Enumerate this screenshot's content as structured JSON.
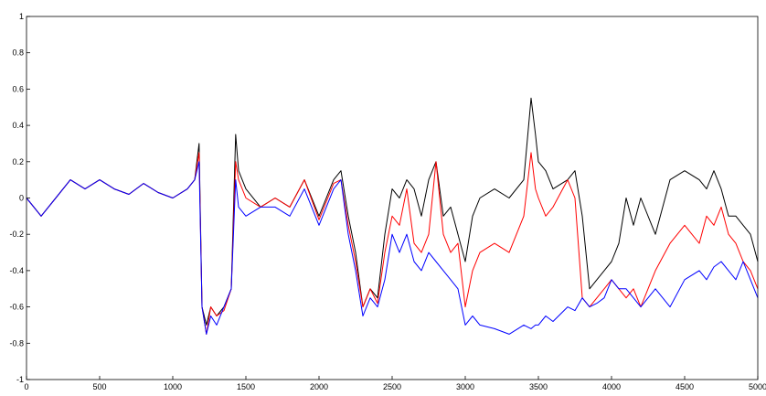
{
  "chart_data": {
    "type": "line",
    "title": "",
    "xlabel": "",
    "ylabel": "",
    "xlim": [
      0,
      5000
    ],
    "ylim": [
      -1,
      1
    ],
    "grid": false,
    "legend": "none",
    "x_ticks": [
      0,
      500,
      1000,
      1500,
      2000,
      2500,
      3000,
      3500,
      4000,
      4500,
      5000
    ],
    "x_tick_labels": [
      "0",
      "500",
      "1000",
      "1500",
      "2000",
      "2500",
      "3000",
      "3500",
      "4000",
      "4500",
      "5000"
    ],
    "y_ticks": [
      -1,
      -0.8,
      -0.6,
      -0.4,
      -0.2,
      0,
      0.2,
      0.4,
      0.6,
      0.8,
      1
    ],
    "y_tick_labels": [
      "-1",
      "-0.8",
      "-0.6",
      "-0.4",
      "-0.2",
      "0",
      "0.2",
      "0.4",
      "0.6",
      "0.8",
      "1"
    ],
    "x": [
      0,
      100,
      200,
      300,
      400,
      500,
      600,
      700,
      800,
      900,
      1000,
      1100,
      1150,
      1180,
      1200,
      1230,
      1260,
      1300,
      1350,
      1400,
      1430,
      1450,
      1500,
      1600,
      1700,
      1800,
      1900,
      2000,
      2100,
      2150,
      2200,
      2250,
      2300,
      2350,
      2400,
      2450,
      2500,
      2550,
      2600,
      2650,
      2700,
      2750,
      2800,
      2850,
      2900,
      2950,
      3000,
      3050,
      3100,
      3200,
      3300,
      3400,
      3450,
      3480,
      3500,
      3550,
      3600,
      3700,
      3750,
      3800,
      3850,
      3900,
      3950,
      4000,
      4050,
      4100,
      4150,
      4200,
      4300,
      4400,
      4500,
      4600,
      4650,
      4700,
      4750,
      4800,
      4850,
      4900,
      4950,
      5000
    ],
    "series": [
      {
        "color": "#000000",
        "values": [
          0.0,
          -0.1,
          0.0,
          0.1,
          0.05,
          0.1,
          0.05,
          0.02,
          0.08,
          0.03,
          0.0,
          0.05,
          0.1,
          0.3,
          -0.6,
          -0.7,
          -0.6,
          -0.65,
          -0.6,
          -0.5,
          0.35,
          0.15,
          0.05,
          -0.05,
          0.0,
          -0.05,
          0.1,
          -0.1,
          0.1,
          0.15,
          -0.1,
          -0.3,
          -0.6,
          -0.5,
          -0.55,
          -0.2,
          0.05,
          0.0,
          0.1,
          0.05,
          -0.1,
          0.1,
          0.2,
          -0.1,
          -0.05,
          -0.2,
          -0.35,
          -0.1,
          0.0,
          0.05,
          0.0,
          0.1,
          0.55,
          0.35,
          0.2,
          0.15,
          0.05,
          0.1,
          0.15,
          -0.1,
          -0.5,
          -0.45,
          -0.4,
          -0.35,
          -0.25,
          0.0,
          -0.15,
          0.0,
          -0.2,
          0.1,
          0.15,
          0.1,
          0.05,
          0.15,
          0.05,
          -0.1,
          -0.1,
          -0.15,
          -0.2,
          -0.35
        ]
      },
      {
        "color": "#ff0000",
        "values": [
          0.0,
          -0.1,
          0.0,
          0.1,
          0.05,
          0.1,
          0.05,
          0.02,
          0.08,
          0.03,
          0.0,
          0.05,
          0.1,
          0.25,
          -0.6,
          -0.75,
          -0.6,
          -0.65,
          -0.62,
          -0.5,
          0.2,
          0.1,
          0.0,
          -0.05,
          0.0,
          -0.05,
          0.1,
          -0.12,
          0.08,
          0.1,
          -0.15,
          -0.35,
          -0.6,
          -0.5,
          -0.58,
          -0.3,
          -0.1,
          -0.15,
          0.05,
          -0.25,
          -0.3,
          -0.2,
          0.2,
          -0.2,
          -0.3,
          -0.25,
          -0.6,
          -0.4,
          -0.3,
          -0.25,
          -0.3,
          -0.1,
          0.25,
          0.05,
          0.0,
          -0.1,
          -0.05,
          0.1,
          0.0,
          -0.55,
          -0.6,
          -0.55,
          -0.5,
          -0.45,
          -0.5,
          -0.55,
          -0.5,
          -0.6,
          -0.4,
          -0.25,
          -0.15,
          -0.25,
          -0.1,
          -0.15,
          -0.05,
          -0.2,
          -0.25,
          -0.35,
          -0.4,
          -0.5
        ]
      },
      {
        "color": "#0000ff",
        "values": [
          0.0,
          -0.1,
          0.0,
          0.1,
          0.05,
          0.1,
          0.05,
          0.02,
          0.08,
          0.03,
          0.0,
          0.05,
          0.1,
          0.2,
          -0.6,
          -0.75,
          -0.65,
          -0.7,
          -0.6,
          -0.5,
          0.1,
          -0.05,
          -0.1,
          -0.05,
          -0.05,
          -0.1,
          0.05,
          -0.15,
          0.05,
          0.1,
          -0.2,
          -0.4,
          -0.65,
          -0.55,
          -0.6,
          -0.45,
          -0.2,
          -0.3,
          -0.2,
          -0.35,
          -0.4,
          -0.3,
          -0.35,
          -0.4,
          -0.45,
          -0.5,
          -0.7,
          -0.65,
          -0.7,
          -0.72,
          -0.75,
          -0.7,
          -0.72,
          -0.7,
          -0.7,
          -0.65,
          -0.68,
          -0.6,
          -0.62,
          -0.55,
          -0.6,
          -0.58,
          -0.55,
          -0.45,
          -0.5,
          -0.5,
          -0.55,
          -0.6,
          -0.5,
          -0.6,
          -0.45,
          -0.4,
          -0.45,
          -0.38,
          -0.35,
          -0.4,
          -0.45,
          -0.35,
          -0.45,
          -0.55
        ]
      }
    ]
  }
}
